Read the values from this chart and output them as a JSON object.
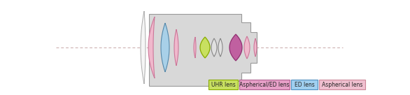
{
  "body_color": "#d8d8d8",
  "body_edge": "#999999",
  "axis_color": "#c8a8a8",
  "white_lens_color": "#f5f5f5",
  "pink_color": "#f0b8cc",
  "pink_edge": "#cc7799",
  "blue_color": "#a8d0e8",
  "blue_edge": "#5588aa",
  "green_color": "#c8e060",
  "green_edge": "#88aa00",
  "purple_color": "#c060a0",
  "purple_edge": "#903070",
  "gray_color": "#e0e0e0",
  "gray_edge": "#888888",
  "legend": [
    {
      "label": "UHR lens",
      "facecolor": "#c8e060",
      "edgecolor": "#88aa00"
    },
    {
      "label": "Aspherical/ED lens",
      "facecolor": "#e8a0c8",
      "edgecolor": "#b06090"
    },
    {
      "label": "ED lens",
      "facecolor": "#a0d0f0",
      "edgecolor": "#5090c0"
    },
    {
      "label": "Aspherical lens",
      "facecolor": "#f0c0d0",
      "edgecolor": "#cc8899"
    }
  ]
}
